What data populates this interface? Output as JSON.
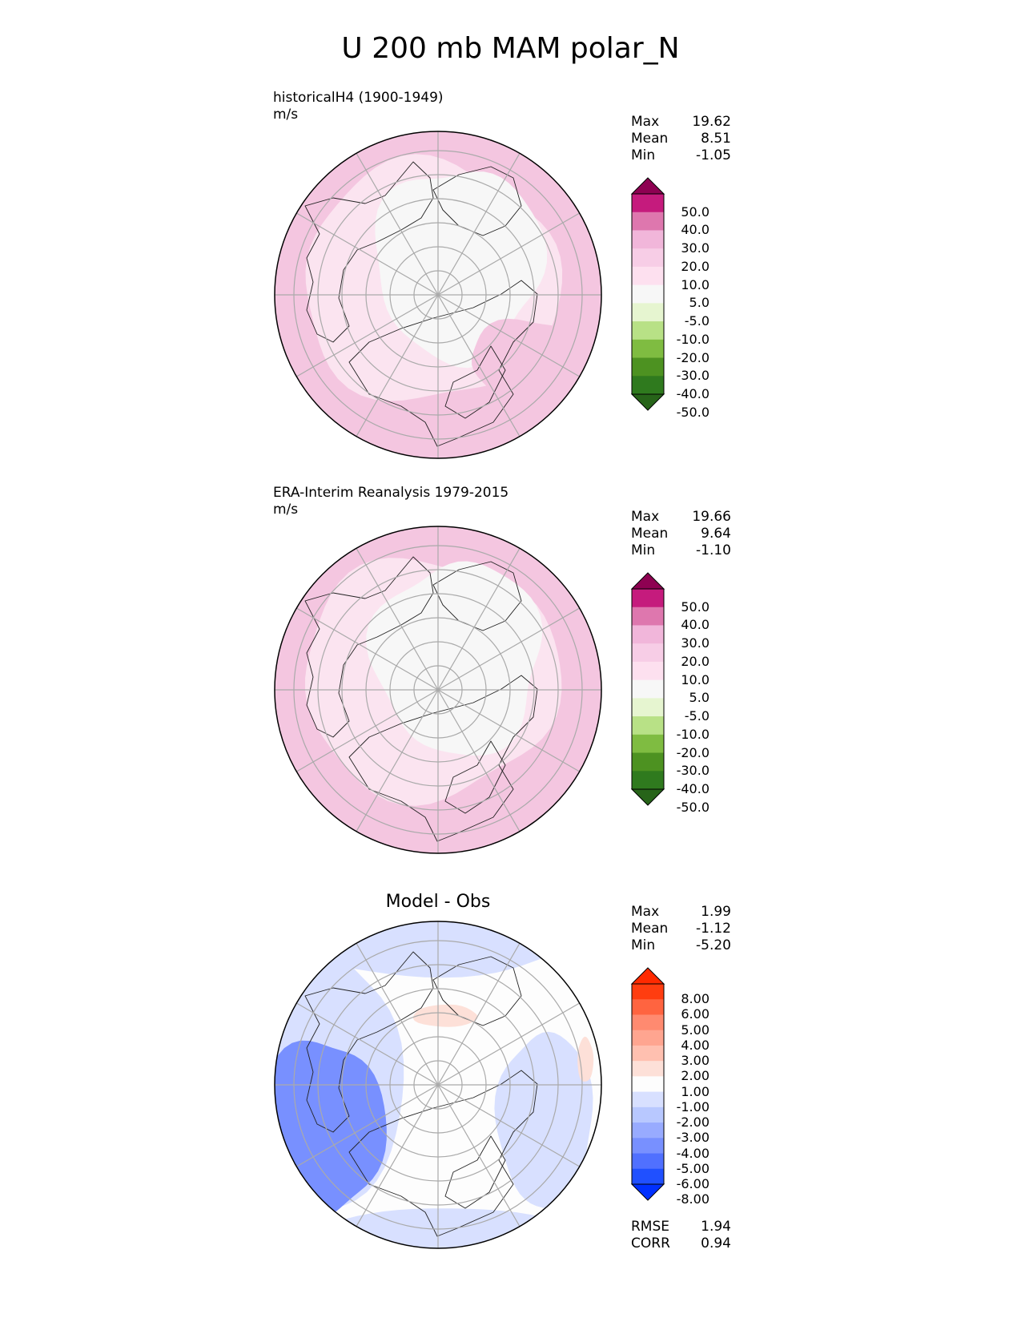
{
  "figure_title": "U 200 mb MAM polar_N",
  "chart_data": [
    {
      "type": "heatmap",
      "projection": "north polar stereographic",
      "title": "historicalH4 (1900-1949)",
      "units": "m/s",
      "stats": [
        {
          "label": "Max",
          "value": "19.62"
        },
        {
          "label": "Mean",
          "value": "8.51"
        },
        {
          "label": "Min",
          "value": "-1.05"
        }
      ],
      "colorbar": {
        "levels": [
          "50.0",
          "40.0",
          "30.0",
          "20.0",
          "10.0",
          "5.0",
          "-5.0",
          "-10.0",
          "-20.0",
          "-30.0",
          "-40.0",
          "-50.0"
        ],
        "colors": [
          "#8e0152",
          "#c51b7d",
          "#de77ae",
          "#f1b6da",
          "#f7cde6",
          "#fde0ef",
          "#f7f7f7",
          "#e6f5d0",
          "#b8e186",
          "#7fbc41",
          "#4d9221",
          "#2f7a1e",
          "#276419"
        ],
        "extend": "both"
      },
      "regions": [
        {
          "name": "outer band",
          "range_m_s": "10 to 20",
          "color": "#f4c6e0"
        },
        {
          "name": "mid band",
          "range_m_s": "5 to 10",
          "color": "#fbe4f0"
        },
        {
          "name": "polar cap",
          "range_m_s": "-5 to 5",
          "color": "#f7f7f7"
        }
      ]
    },
    {
      "type": "heatmap",
      "projection": "north polar stereographic",
      "title": "ERA-Interim Reanalysis 1979-2015",
      "units": "m/s",
      "stats": [
        {
          "label": "Max",
          "value": "19.66"
        },
        {
          "label": "Mean",
          "value": "9.64"
        },
        {
          "label": "Min",
          "value": "-1.10"
        }
      ],
      "colorbar": {
        "levels": [
          "50.0",
          "40.0",
          "30.0",
          "20.0",
          "10.0",
          "5.0",
          "-5.0",
          "-10.0",
          "-20.0",
          "-30.0",
          "-40.0",
          "-50.0"
        ],
        "colors": [
          "#8e0152",
          "#c51b7d",
          "#de77ae",
          "#f1b6da",
          "#f7cde6",
          "#fde0ef",
          "#f7f7f7",
          "#e6f5d0",
          "#b8e186",
          "#7fbc41",
          "#4d9221",
          "#2f7a1e",
          "#276419"
        ],
        "extend": "both"
      },
      "regions": [
        {
          "name": "outer band",
          "range_m_s": "10 to 20",
          "color": "#f4c6e0"
        },
        {
          "name": "mid band",
          "range_m_s": "5 to 10",
          "color": "#fbe4f0"
        },
        {
          "name": "polar cap",
          "range_m_s": "-5 to 5",
          "color": "#f7f7f7"
        }
      ]
    },
    {
      "type": "heatmap",
      "projection": "north polar stereographic",
      "title": "Model - Obs",
      "stats": [
        {
          "label": "Max",
          "value": "1.99"
        },
        {
          "label": "Mean",
          "value": "-1.12"
        },
        {
          "label": "Min",
          "value": "-5.20"
        }
      ],
      "colorbar": {
        "levels": [
          "8.00",
          "6.00",
          "5.00",
          "4.00",
          "3.00",
          "2.00",
          "1.00",
          "-1.00",
          "-2.00",
          "-3.00",
          "-4.00",
          "-5.00",
          "-6.00",
          "-8.00"
        ],
        "colors": [
          "#ff2a00",
          "#ff3d10",
          "#ff6440",
          "#ff8a70",
          "#ffa590",
          "#ffc0b0",
          "#fde0d8",
          "#fdfdfd",
          "#d8e0ff",
          "#b8c8ff",
          "#98abff",
          "#7890ff",
          "#5070ff",
          "#2050ff",
          "#0030ff"
        ],
        "extend": "both"
      },
      "regions": [
        {
          "name": "near zero",
          "range_m_s": "-1 to 1",
          "color": "#fdfdfd"
        },
        {
          "name": "negative ring",
          "range_m_s": "-2 to -1",
          "color": "#d8e0ff"
        },
        {
          "name": "strong negative",
          "range_m_s": "-5 to -3",
          "color": "#7890ff"
        },
        {
          "name": "positive patch",
          "range_m_s": "1 to 2",
          "color": "#fde0d8"
        }
      ],
      "bottom_stats": [
        {
          "label": "RMSE",
          "value": "1.94"
        },
        {
          "label": "CORR",
          "value": "0.94"
        }
      ]
    }
  ]
}
